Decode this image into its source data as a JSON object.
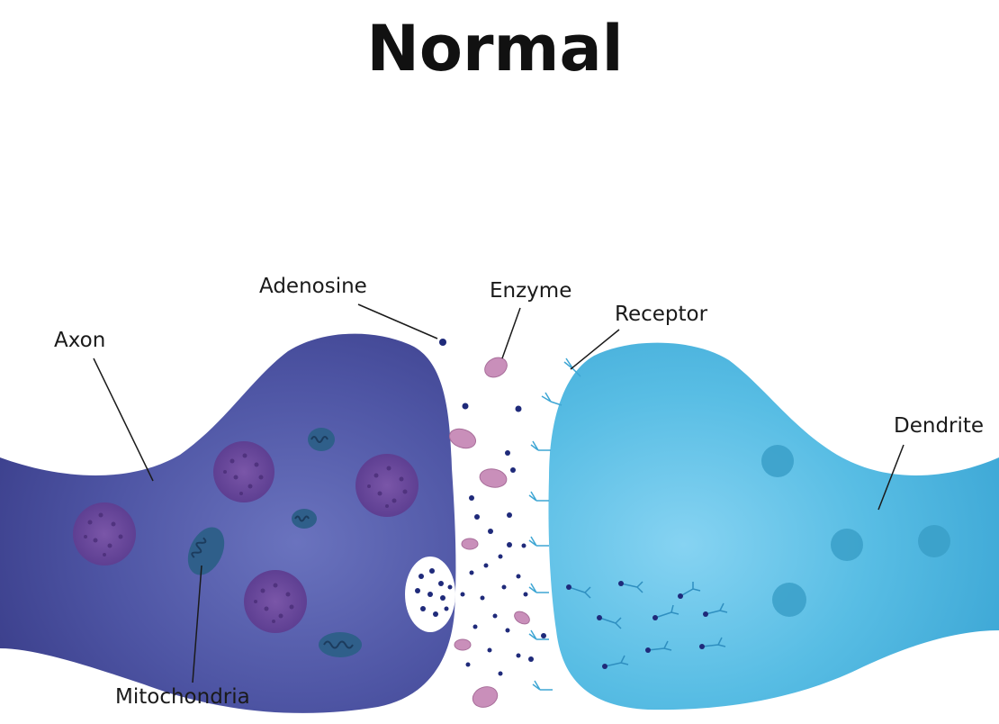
{
  "title": "Normal",
  "labels": {
    "axon": "Axon",
    "adenosine": "Adenosine",
    "enzyme": "Enzyme",
    "receptor": "Receptor",
    "dendrite": "Dendrite",
    "mitochondria": "Mitochondria"
  },
  "colors": {
    "axon": "#4b52a0",
    "axon_dark": "#3b3f8c",
    "dendrite": "#4cb3dc",
    "dendrite_light": "#7ccdee",
    "nucleus": "#6a4a9a",
    "mitochondria": "#2f5f8a",
    "enzyme": "#c98fba",
    "adenosine_dot": "#1f2a7a",
    "receptor": "#3ea6d4",
    "leader_line": "#1a1a1a"
  }
}
